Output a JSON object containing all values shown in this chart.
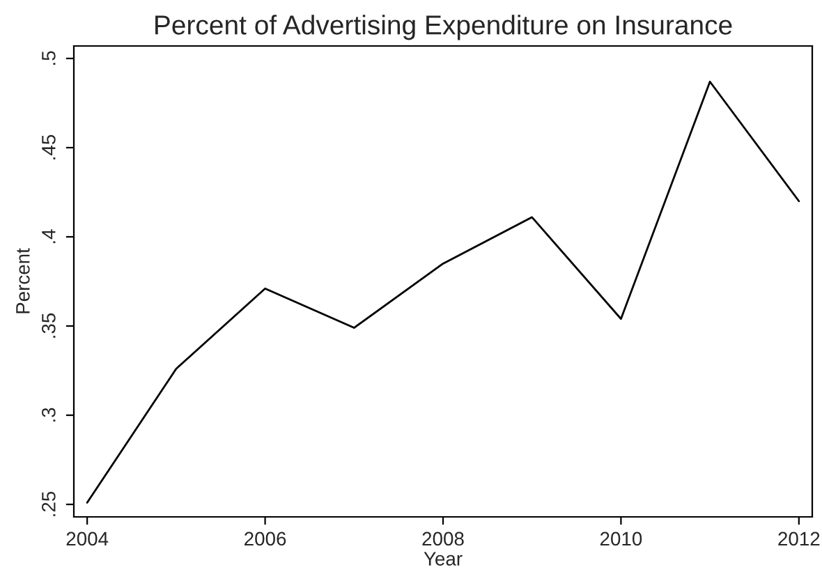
{
  "chart_data": {
    "type": "line",
    "title": "Percent of Advertising Expenditure on Insurance",
    "xlabel": "Year",
    "ylabel": "Percent",
    "x": [
      2004,
      2005,
      2006,
      2007,
      2008,
      2009,
      2010,
      2011,
      2012
    ],
    "series": [
      {
        "color": "#000000",
        "values": [
          0.251,
          0.326,
          0.371,
          0.349,
          0.385,
          0.411,
          0.354,
          0.487,
          0.42
        ]
      }
    ],
    "xlim": [
      2003.85,
      2012.15
    ],
    "ylim": [
      0.243,
      0.507
    ],
    "xticks": [
      2004,
      2006,
      2008,
      2010,
      2012
    ],
    "yticks": [
      {
        "value": 0.25,
        "label": ".25"
      },
      {
        "value": 0.3,
        "label": ".3"
      },
      {
        "value": 0.35,
        "label": ".35"
      },
      {
        "value": 0.4,
        "label": ".4"
      },
      {
        "value": 0.45,
        "label": ".45"
      },
      {
        "value": 0.5,
        "label": ".5"
      }
    ],
    "grid": false,
    "marker": "none",
    "line_style": "solid"
  }
}
